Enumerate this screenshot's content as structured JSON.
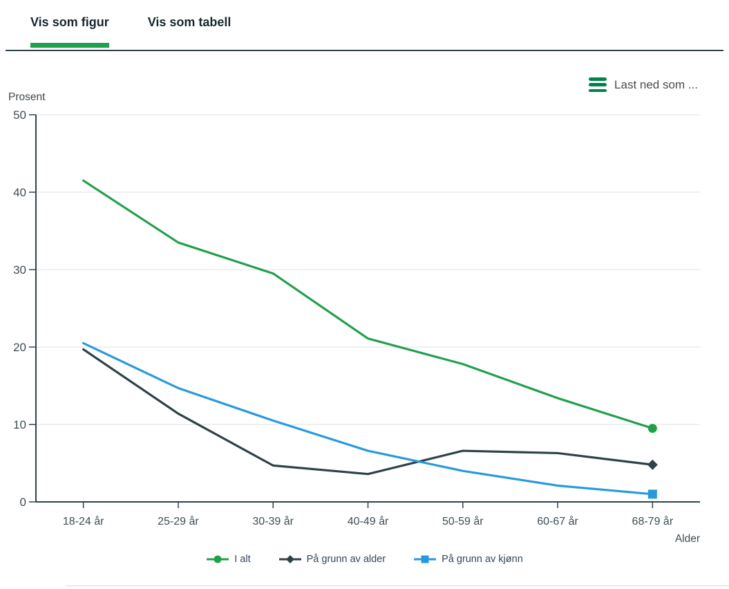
{
  "tabs": [
    {
      "label": "Vis som figur",
      "active": true
    },
    {
      "label": "Vis som tabell",
      "active": false
    }
  ],
  "download": {
    "label": "Last ned som ...",
    "icon": "hamburger-icon"
  },
  "chart_data": {
    "type": "line",
    "title": "",
    "ylabel": "Prosent",
    "xlabel": "Alder",
    "ylim": [
      0,
      50
    ],
    "yticks": [
      0,
      10,
      20,
      30,
      40,
      50
    ],
    "grid": true,
    "legend_position": "bottom",
    "categories": [
      "18-24 år",
      "25-29 år",
      "30-39 år",
      "40-49 år",
      "50-59 år",
      "60-67 år",
      "68-79 år"
    ],
    "series": [
      {
        "name": "I alt",
        "color": "#21a04c",
        "marker": "circle",
        "values": [
          41.5,
          33.5,
          29.5,
          21.1,
          17.8,
          13.4,
          9.5
        ]
      },
      {
        "name": "På grunn av alder",
        "color": "#2f4247",
        "marker": "diamond",
        "values": [
          19.7,
          11.4,
          4.7,
          3.6,
          6.6,
          6.3,
          4.8
        ]
      },
      {
        "name": "På grunn av kjønn",
        "color": "#2999de",
        "marker": "square",
        "values": [
          20.5,
          14.7,
          10.5,
          6.6,
          4.0,
          2.1,
          1.0
        ]
      }
    ]
  },
  "colors": {
    "accent_green": "#21a04c",
    "axis_dark": "#2f4247",
    "gridline": "#ebebeb",
    "tick_text": "#3d4d54",
    "legend_text": "#33465a"
  }
}
